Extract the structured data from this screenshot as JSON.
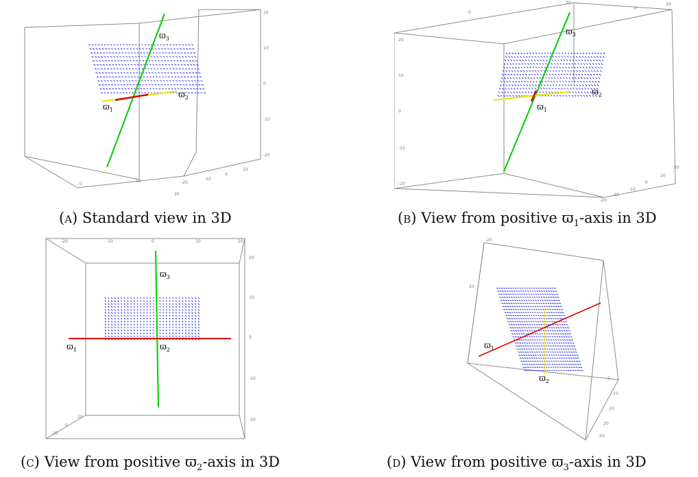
{
  "figure": {
    "panels": [
      {
        "id": "A",
        "caption": {
          "tag": "(a)",
          "text": "Standard view in 3D"
        },
        "axis_labels": {
          "w1": "ϖ",
          "w1_sub": "1",
          "w2": "ϖ",
          "w2_sub": "2",
          "w3": "ϖ",
          "w3_sub": "3"
        },
        "ticks": [
          "20",
          "10",
          "0",
          "-10",
          "-20",
          "0",
          "20",
          "-20",
          "-10",
          "0",
          "10",
          "20"
        ],
        "colors": {
          "box": "#8a8a8a",
          "field": "#1010e0",
          "w1_axis": "#e00000",
          "w2_axis": "#f0e000",
          "w3_axis": "#10d010"
        }
      },
      {
        "id": "B",
        "caption": {
          "tag": "(b)",
          "text": "View from positive ϖ",
          "sub": "1",
          "tail": "-axis in 3D"
        },
        "axis_labels": {
          "w1": "ϖ",
          "w1_sub": "1",
          "w2": "ϖ",
          "w2_sub": "2",
          "w3": "ϖ",
          "w3_sub": "3"
        },
        "ticks": [
          "20",
          "10",
          "0",
          "-10",
          "-20",
          "20",
          "0",
          "-20",
          "-20",
          "-10",
          "0",
          "10",
          "20",
          "0",
          "20"
        ],
        "colors": {
          "box": "#8a8a8a",
          "field": "#1010e0",
          "w1_axis": "#e00000",
          "w2_axis": "#f0e000",
          "w3_axis": "#10d010"
        }
      },
      {
        "id": "C",
        "caption": {
          "tag": "(c)",
          "text": "View from positive ϖ",
          "sub": "2",
          "tail": "-axis in 3D"
        },
        "axis_labels": {
          "w1": "ϖ",
          "w1_sub": "1",
          "w2": "ϖ",
          "w2_sub": "2",
          "w3": "ϖ",
          "w3_sub": "3"
        },
        "ticks": [
          "-20",
          "-10",
          "0",
          "10",
          "20",
          "20",
          "10",
          "0",
          "-10",
          "-20",
          "-20",
          "0",
          "20"
        ],
        "colors": {
          "box": "#8a8a8a",
          "field": "#1010e0",
          "w1_axis": "#e00000",
          "w3_axis": "#10d010"
        }
      },
      {
        "id": "D",
        "caption": {
          "tag": "(d)",
          "text": "View from positive ϖ",
          "sub": "3",
          "tail": "-axis in 3D"
        },
        "axis_labels": {
          "w1": "ϖ",
          "w1_sub": "1",
          "w2": "ϖ",
          "w2_sub": "2"
        },
        "ticks": [
          "-20",
          "20",
          "0",
          "-10",
          "10",
          "20",
          "-20"
        ],
        "colors": {
          "box": "#8a8a8a",
          "field": "#1010e0",
          "w1_axis": "#e00000",
          "w2_axis": "#f0e000"
        }
      }
    ]
  }
}
